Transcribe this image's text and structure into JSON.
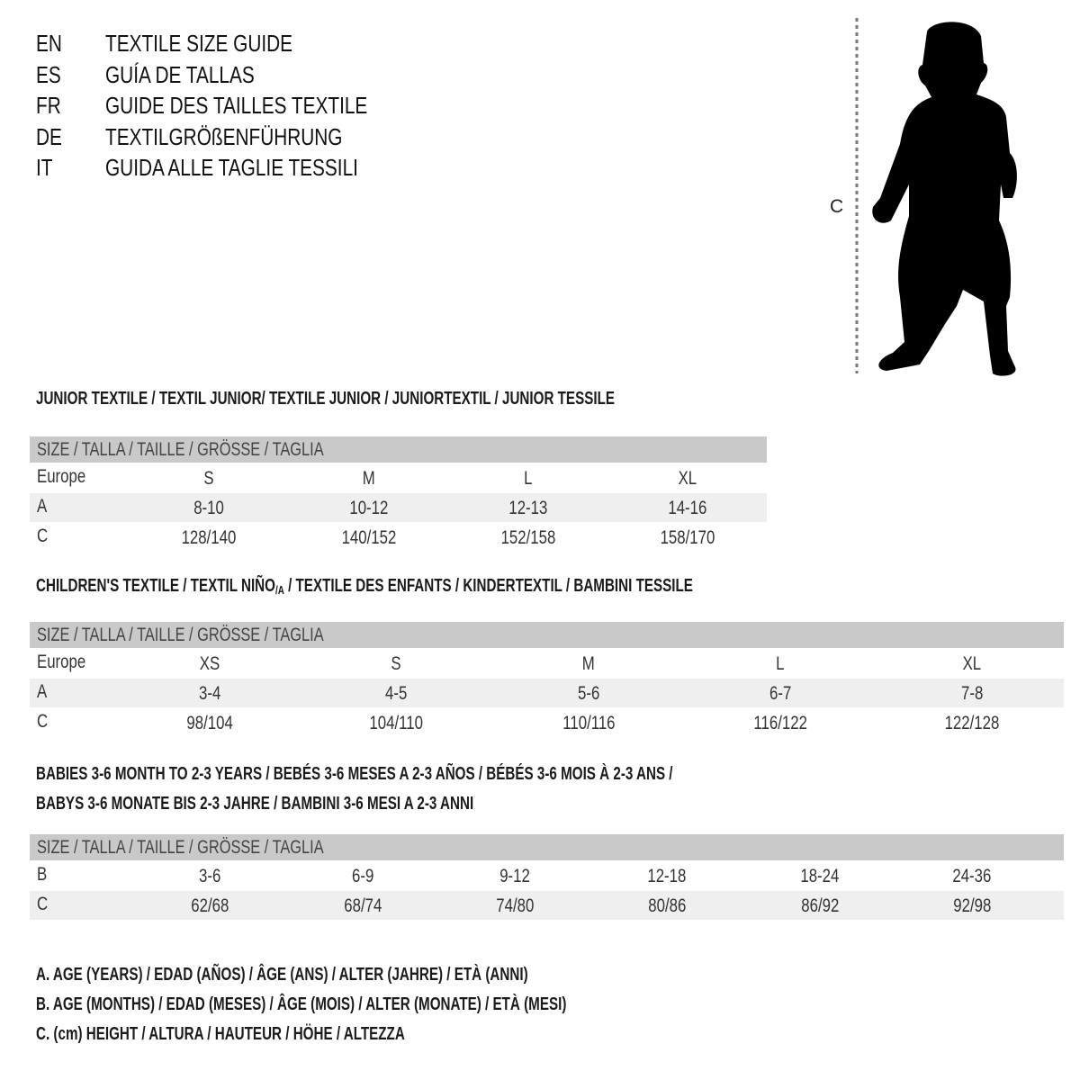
{
  "languages": [
    {
      "code": "EN",
      "title": "TEXTILE SIZE GUIDE"
    },
    {
      "code": "ES",
      "title": "GUÍA DE TALLAS"
    },
    {
      "code": "FR",
      "title": "GUIDE DES TAILLES TEXTILE"
    },
    {
      "code": "DE",
      "title": "TEXTILGRÖßENFÜHRUNG"
    },
    {
      "code": "IT",
      "title": "GUIDA ALLE TAGLIE TESSILI"
    }
  ],
  "figure": {
    "measure_label": "C"
  },
  "junior": {
    "heading": "JUNIOR TEXTILE / TEXTIL JUNIOR/ TEXTILE JUNIOR / JUNIORTEXTIL / JUNIOR TESSILE",
    "table_header": "SIZE / TALLA / TAILLE / GRÖSSE / TAGLIA",
    "rows": [
      {
        "label": "Europe",
        "values": [
          "S",
          "M",
          "L",
          "XL"
        ]
      },
      {
        "label": "A",
        "values": [
          "8-10",
          "10-12",
          "12-13",
          "14-16"
        ]
      },
      {
        "label": "C",
        "values": [
          "128/140",
          "140/152",
          "152/158",
          "158/170"
        ]
      }
    ]
  },
  "children": {
    "heading_pre": "CHILDREN'S TEXTILE / TEXTIL NIÑO",
    "heading_sub": "/A",
    "heading_post": " / TEXTILE DES ENFANTS / KINDERTEXTIL / BAMBINI TESSILE",
    "table_header": "SIZE / TALLA / TAILLE / GRÖSSE / TAGLIA",
    "rows": [
      {
        "label": "Europe",
        "values": [
          "XS",
          "S",
          "M",
          "L",
          "XL"
        ]
      },
      {
        "label": "A",
        "values": [
          "3-4",
          "4-5",
          "5-6",
          "6-7",
          "7-8"
        ]
      },
      {
        "label": "C",
        "values": [
          "98/104",
          "104/110",
          "110/116",
          "116/122",
          "122/128"
        ]
      }
    ]
  },
  "babies": {
    "heading_line1": "BABIES 3-6 MONTH TO 2-3 YEARS / BEBÉS 3-6 MESES A 2-3 AÑOS / BÉBÉS 3-6 MOIS À 2-3 ANS /",
    "heading_line2": "BABYS 3-6 MONATE BIS 2-3 JAHRE / BAMBINI 3-6 MESI A 2-3 ANNI",
    "table_header": "SIZE / TALLA / TAILLE / GRÖSSE / TAGLIA",
    "rows": [
      {
        "label": "B",
        "values": [
          "3-6",
          "6-9",
          "9-12",
          "12-18",
          "18-24",
          "24-36"
        ]
      },
      {
        "label": "C",
        "values": [
          "62/68",
          "68/74",
          "74/80",
          "80/86",
          "86/92",
          "92/98"
        ]
      }
    ]
  },
  "notes": [
    "A. AGE (YEARS) / EDAD (AÑOS) / ÂGE (ANS) / ALTER (JAHRE) / ETÀ (ANNI)",
    "B. AGE (MONTHS) / EDAD (MESES) / ÂGE (MOIS) / ALTER (MONATE) / ETÀ (MESI)",
    "C. (cm) HEIGHT / ALTURA / HAUTEUR / HÖHE / ALTEZZA"
  ],
  "colors": {
    "table_header_bg": "#c9c9c9",
    "row_shade": "#efefef",
    "silhouette": "#000000"
  }
}
